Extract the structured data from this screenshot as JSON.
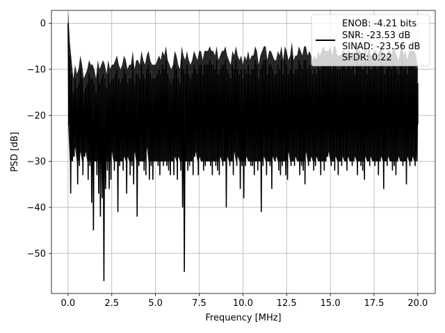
{
  "chart_data": {
    "type": "line",
    "xlabel": "Frequency [MHz]",
    "ylabel": "PSD [dB]",
    "xlim": [
      -0.95,
      21.0
    ],
    "ylim": [
      -58.7,
      2.8
    ],
    "xticks": [
      0.0,
      2.5,
      5.0,
      7.5,
      10.0,
      12.5,
      15.0,
      17.5,
      20.0
    ],
    "xtick_labels": [
      "0.0",
      "2.5",
      "5.0",
      "7.5",
      "10.0",
      "12.5",
      "15.0",
      "17.5",
      "20.0"
    ],
    "yticks": [
      0,
      -10,
      -20,
      -30,
      -40,
      -50
    ],
    "ytick_labels": [
      "0",
      "−10",
      "−20",
      "−30",
      "−40",
      "−50"
    ],
    "grid": true,
    "legend": {
      "placement": "upper right",
      "entries": [
        "ENOB: -4.21 bits",
        "SNR: -23.53 dB",
        "SINAD: -23.56 dB",
        "SFDR: 0.22"
      ]
    },
    "series": [
      {
        "color": "#000000",
        "x": [
          0.0,
          0.1,
          0.2,
          0.3,
          0.4,
          0.5,
          0.6,
          0.7,
          0.8,
          0.9,
          1.0,
          1.1,
          1.2,
          1.3,
          1.4,
          1.5,
          1.6,
          1.7,
          1.8,
          1.9,
          2.0,
          2.1,
          2.2,
          2.3,
          2.4,
          2.5,
          2.6,
          2.7,
          2.8,
          2.9,
          3.0,
          3.1,
          3.2,
          3.3,
          3.4,
          3.5,
          3.6,
          3.7,
          3.8,
          3.9,
          4.0,
          4.1,
          4.2,
          4.3,
          4.4,
          4.5,
          4.6,
          4.7,
          4.8,
          4.9,
          5.0,
          5.1,
          5.2,
          5.3,
          5.4,
          5.5,
          5.6,
          5.7,
          5.8,
          5.9,
          6.0,
          6.1,
          6.2,
          6.3,
          6.4,
          6.5,
          6.6,
          6.7,
          6.8,
          6.9,
          7.0,
          7.1,
          7.2,
          7.3,
          7.4,
          7.5,
          7.6,
          7.7,
          7.8,
          7.9,
          8.0,
          8.1,
          8.2,
          8.3,
          8.4,
          8.5,
          8.6,
          8.7,
          8.8,
          8.9,
          9.0,
          9.1,
          9.2,
          9.3,
          9.4,
          9.5,
          9.6,
          9.7,
          9.8,
          9.9,
          10.0,
          10.1,
          10.2,
          10.3,
          10.4,
          10.5,
          10.6,
          10.7,
          10.8,
          10.9,
          11.0,
          11.1,
          11.2,
          11.3,
          11.4,
          11.5,
          11.6,
          11.7,
          11.8,
          11.9,
          12.0,
          12.1,
          12.2,
          12.3,
          12.4,
          12.5,
          12.6,
          12.7,
          12.8,
          12.9,
          13.0,
          13.1,
          13.2,
          13.3,
          13.4,
          13.5,
          13.6,
          13.7,
          13.8,
          13.9,
          14.0,
          14.1,
          14.2,
          14.3,
          14.4,
          14.5,
          14.6,
          14.7,
          14.8,
          14.9,
          15.0,
          15.1,
          15.2,
          15.3,
          15.4,
          15.5,
          15.6,
          15.7,
          15.8,
          15.9,
          16.0,
          16.1,
          16.2,
          16.3,
          16.4,
          16.5,
          16.6,
          16.7,
          16.8,
          16.9,
          17.0,
          17.1,
          17.2,
          17.3,
          17.4,
          17.5,
          17.6,
          17.7,
          17.8,
          17.9,
          18.0,
          18.1,
          18.2,
          18.3,
          18.4,
          18.5,
          18.6,
          18.7,
          18.8,
          18.9,
          19.0,
          19.1,
          19.2,
          19.3,
          19.4,
          19.5,
          19.6,
          19.7,
          19.8,
          19.9,
          20.0
        ],
        "y_max": [
          0.0,
          -7,
          -11,
          -15,
          -12,
          -14,
          -13,
          -10,
          -12,
          -15,
          -14,
          -13,
          -11,
          -12,
          -12,
          -13,
          -15,
          -11,
          -13,
          -12,
          -11,
          -12,
          -14,
          -11,
          -13,
          -12,
          -12,
          -11,
          -10,
          -12,
          -13,
          -12,
          -10,
          -11,
          -13,
          -12,
          -12,
          -9,
          -13,
          -11,
          -11,
          -12,
          -9,
          -11,
          -12,
          -10,
          -9,
          -11,
          -12,
          -12,
          -12,
          -11,
          -10,
          -11,
          -9,
          -10,
          -8,
          -11,
          -12,
          -13,
          -12,
          -9,
          -10,
          -12,
          -13,
          -8,
          -10,
          -11,
          -9,
          -11,
          -12,
          -11,
          -9,
          -10,
          -11,
          -9,
          -9,
          -11,
          -9,
          -9,
          -9,
          -8,
          -9,
          -9,
          -10,
          -8,
          -11,
          -10,
          -9,
          -9,
          -8,
          -10,
          -11,
          -12,
          -9,
          -10,
          -8,
          -10,
          -11,
          -10,
          -12,
          -10,
          -11,
          -9,
          -11,
          -10,
          -10,
          -8,
          -9,
          -12,
          -10,
          -9,
          -8,
          -8,
          -11,
          -9,
          -9,
          -10,
          -11,
          -11,
          -9,
          -10,
          -8,
          -11,
          -8,
          -9,
          -11,
          -10,
          -7,
          -11,
          -10,
          -10,
          -8,
          -9,
          -10,
          -8,
          -8,
          -10,
          -9,
          -10,
          -11,
          -10,
          -11,
          -9,
          -10,
          -9,
          -8,
          -9,
          -9,
          -9,
          -8,
          -10,
          -8,
          -8,
          -10,
          -10,
          -10,
          -9,
          -9,
          -10,
          -9,
          -9,
          -10,
          -9,
          -11,
          -7,
          -9,
          -9,
          -10,
          -10,
          -8,
          -11,
          -7,
          -10,
          -10,
          -9,
          -9,
          -10,
          -9,
          -8,
          -9,
          -11,
          -10,
          -9,
          -9,
          -10,
          -8,
          -9,
          -10,
          -11,
          -9,
          -7,
          -10,
          -9,
          -11,
          -9,
          -9,
          -9,
          -9,
          -10,
          -13
        ],
        "y_min": [
          -22,
          -37,
          -30,
          -29,
          -27,
          -35,
          -31,
          -28,
          -33,
          -29,
          -28,
          -34,
          -31,
          -39,
          -45,
          -30,
          -33,
          -37,
          -42,
          -38,
          -56,
          -36,
          -32,
          -36,
          -34,
          -28,
          -32,
          -30,
          -41,
          -31,
          -30,
          -32,
          -29,
          -37,
          -29,
          -33,
          -31,
          -35,
          -28,
          -42,
          -31,
          -30,
          -30,
          -32,
          -33,
          -27,
          -34,
          -31,
          -34,
          -30,
          -30,
          -31,
          -33,
          -30,
          -31,
          -30,
          -31,
          -32,
          -33,
          -30,
          -33,
          -29,
          -34,
          -29,
          -32,
          -40,
          -54,
          -30,
          -32,
          -31,
          -30,
          -33,
          -29,
          -28,
          -33,
          -29,
          -30,
          -32,
          -31,
          -30,
          -30,
          -31,
          -33,
          -30,
          -31,
          -32,
          -33,
          -29,
          -31,
          -30,
          -40,
          -29,
          -31,
          -30,
          -33,
          -28,
          -31,
          -29,
          -36,
          -31,
          -38,
          -31,
          -29,
          -30,
          -31,
          -31,
          -33,
          -30,
          -32,
          -30,
          -41,
          -31,
          -29,
          -33,
          -30,
          -31,
          -36,
          -29,
          -30,
          -29,
          -32,
          -33,
          -31,
          -30,
          -33,
          -34,
          -28,
          -31,
          -30,
          -31,
          -29,
          -30,
          -33,
          -31,
          -32,
          -35,
          -28,
          -31,
          -30,
          -29,
          -32,
          -31,
          -29,
          -30,
          -33,
          -30,
          -32,
          -30,
          -29,
          -28,
          -31,
          -30,
          -32,
          -29,
          -33,
          -30,
          -31,
          -29,
          -30,
          -32,
          -29,
          -30,
          -31,
          -30,
          -29,
          -33,
          -30,
          -31,
          -32,
          -34,
          -29,
          -30,
          -31,
          -29,
          -30,
          -31,
          -30,
          -33,
          -30,
          -29,
          -36,
          -30,
          -31,
          -29,
          -30,
          -32,
          -31,
          -33,
          -30,
          -29,
          -30,
          -31,
          -30,
          -35,
          -29,
          -31,
          -30,
          -29,
          -31,
          -30,
          -22
        ]
      }
    ]
  }
}
